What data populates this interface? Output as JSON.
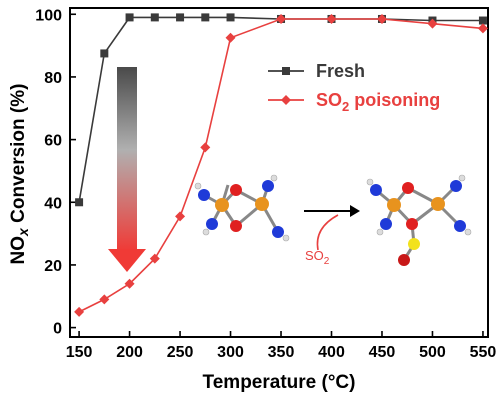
{
  "chart_data": {
    "type": "line",
    "xlabel": "Temperature (°C)",
    "ylabel_parts": {
      "main": "NO",
      "sub": "x",
      "rest": " Conversion (%)"
    },
    "xlim": [
      150,
      550
    ],
    "ylim": [
      -3,
      102
    ],
    "x_ticks": [
      150,
      200,
      250,
      300,
      350,
      400,
      450,
      500,
      550
    ],
    "y_ticks": [
      0,
      20,
      40,
      60,
      80,
      100
    ],
    "x_tick_labels": [
      "150",
      "200",
      "250",
      "300",
      "350",
      "400",
      "450",
      "500",
      "550"
    ],
    "y_tick_labels": [
      "0",
      "20",
      "40",
      "60",
      "80",
      "100"
    ],
    "legend_position": "top-right",
    "series": [
      {
        "name": "Fresh",
        "color": "#3a3a3a",
        "marker": "square",
        "x": [
          150,
          175,
          200,
          225,
          250,
          275,
          300,
          350,
          400,
          450,
          500,
          550
        ],
        "y": [
          40,
          87.5,
          99,
          99,
          99,
          99,
          99,
          98.5,
          98.5,
          98.5,
          98,
          98
        ]
      },
      {
        "name_parts": {
          "main": "SO",
          "sub": "2",
          "rest": " poisoning"
        },
        "color": "#e8403f",
        "marker": "diamond",
        "x": [
          150,
          175,
          200,
          225,
          250,
          275,
          300,
          350,
          400,
          450,
          500,
          550
        ],
        "y": [
          5,
          9,
          14,
          22,
          35.5,
          57.5,
          92.5,
          98.5,
          98.5,
          98.5,
          97,
          95.5
        ]
      }
    ],
    "annotation": {
      "arrow_colors": [
        "#555555",
        "#e8403f"
      ],
      "reaction_label": {
        "main": "SO",
        "sub": "2"
      }
    }
  }
}
